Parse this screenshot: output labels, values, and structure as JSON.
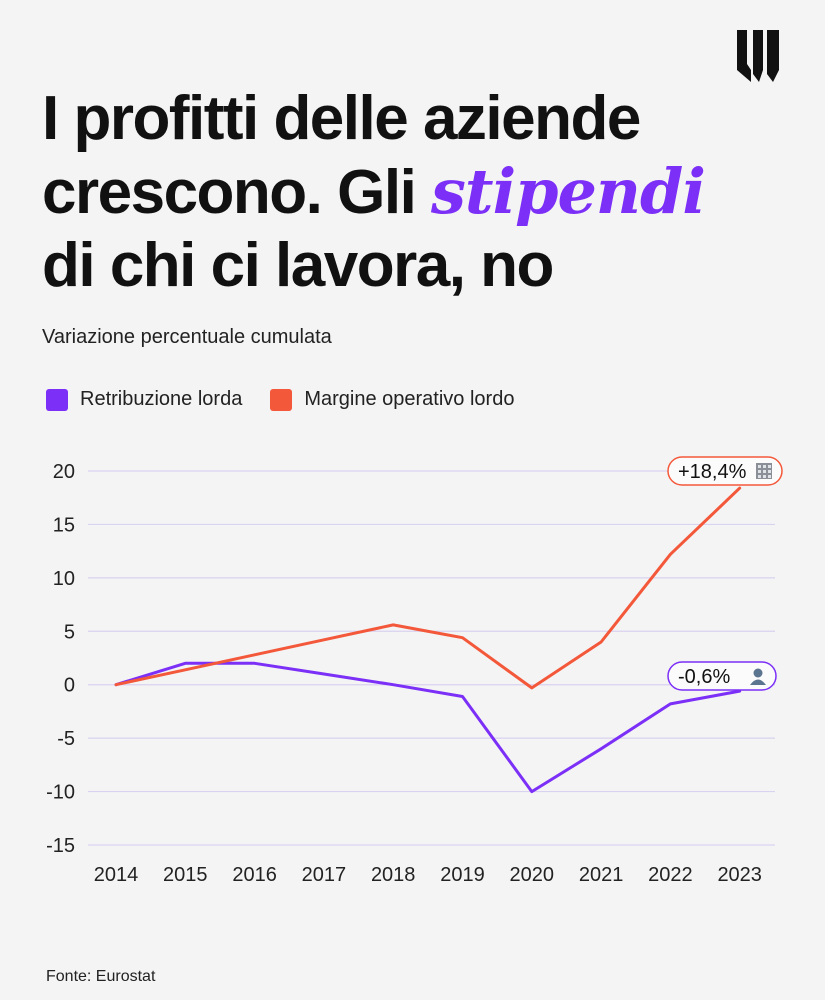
{
  "title": {
    "before": "I profitti delle aziende crescono. Gli ",
    "accent": "stipendi",
    "after": " di chi ci lavora, no"
  },
  "subtitle": "Variazione percentuale cumulata",
  "source": "Fonte: Eurostat",
  "colors": {
    "retribuzione": "#7b2ff7",
    "margine": "#f4583a",
    "grid": "#d9d2f0",
    "background": "#f4f4f4"
  },
  "chart_data": {
    "type": "line",
    "x": [
      "2014",
      "2015",
      "2016",
      "2017",
      "2018",
      "2019",
      "2020",
      "2021",
      "2022",
      "2023"
    ],
    "series": [
      {
        "name": "Retribuzione lorda",
        "values": [
          0,
          2.0,
          2.0,
          1.0,
          0,
          -1.1,
          -10.0,
          -6.0,
          -1.8,
          -0.6
        ],
        "end_label": "-0,6%",
        "end_icon": "person-icon"
      },
      {
        "name": "Margine operativo lordo",
        "values": [
          0,
          1.4,
          2.8,
          4.2,
          5.6,
          4.4,
          -0.3,
          4.0,
          12.2,
          18.4
        ],
        "end_label": "+18,4%",
        "end_icon": "building-icon"
      }
    ],
    "yticks": [
      20,
      15,
      10,
      5,
      0,
      -5,
      -10,
      -15
    ],
    "ylim": [
      -15,
      20
    ],
    "grid": true,
    "legend": "top-left"
  }
}
